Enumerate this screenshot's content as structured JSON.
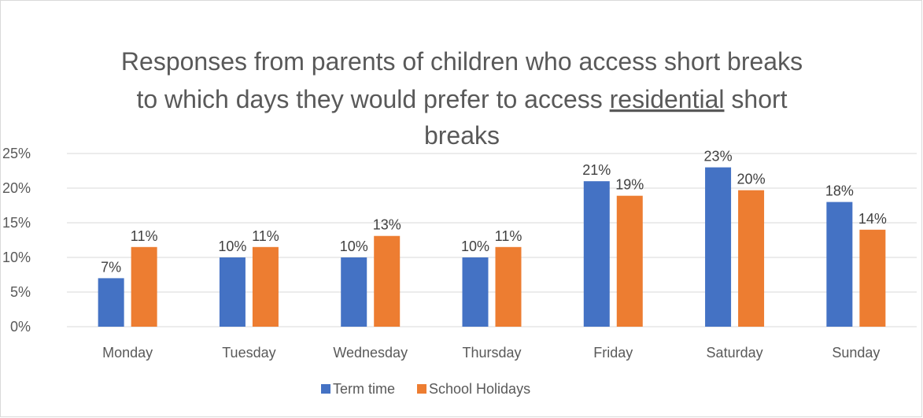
{
  "chart_data": {
    "type": "bar",
    "title_lines": [
      "Responses from parents of children who access short breaks",
      [
        "to which days they would prefer to access ",
        "residential",
        " short"
      ],
      "breaks"
    ],
    "categories": [
      "Monday",
      "Tuesday",
      "Wednesday",
      "Thursday",
      "Friday",
      "Saturday",
      "Sunday"
    ],
    "series": [
      {
        "name": "Term time",
        "color": "#4472c4",
        "values": [
          7,
          10,
          10,
          10,
          21,
          23,
          18
        ],
        "labels": [
          "7%",
          "10%",
          "10%",
          "10%",
          "21%",
          "23%",
          "18%"
        ]
      },
      {
        "name": "School Holidays",
        "color": "#ed7d31",
        "values": [
          11.5,
          11.5,
          13.1,
          11.5,
          18.9,
          19.7,
          14.0
        ],
        "labels": [
          "11%",
          "11%",
          "13%",
          "11%",
          "19%",
          "20%",
          "14%"
        ]
      }
    ],
    "ylim": [
      0,
      25
    ],
    "yticks": [
      0,
      5,
      10,
      15,
      20,
      25
    ],
    "ytick_labels": [
      "0%",
      "5%",
      "10%",
      "15%",
      "20%",
      "25%"
    ],
    "grid": true,
    "legend_position": "bottom"
  }
}
